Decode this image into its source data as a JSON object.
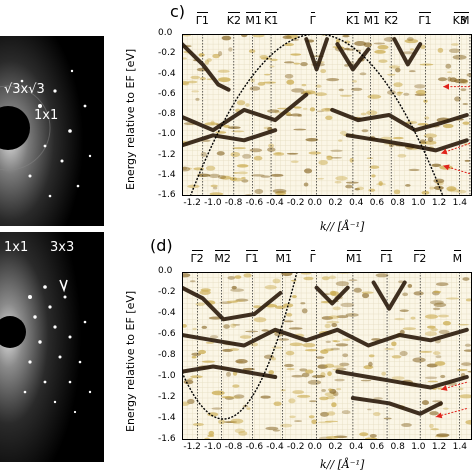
{
  "leed_top": {
    "labels": [
      "√3x√3",
      "1x1"
    ]
  },
  "leed_bottom": {
    "labels": [
      "1x1",
      "3x3"
    ]
  },
  "panel_c": {
    "letter": "c)",
    "ylabel": "Energy relative to EF [eV]",
    "xlabel": "k// [Å⁻¹]",
    "kpoints": [
      "Γ1",
      "K2",
      "M1",
      "K1",
      "Γ",
      "K1",
      "M1",
      "K2",
      "Γ1",
      "K3",
      "M"
    ]
  },
  "panel_d": {
    "letter": "(d)",
    "ylabel": "Energy relative to EF [eV]",
    "xlabel": "k// [Å⁻¹]",
    "kpoints": [
      "Γ2",
      "M2",
      "Γ1",
      "M1",
      "Γ",
      "M1",
      "Γ1",
      "Γ2",
      "M"
    ]
  },
  "colors": {
    "band_dark": "#2a1a0a",
    "band_light": "#c9a94a",
    "arrow": "#e0231b"
  },
  "chart_data": [
    {
      "type": "heatmap",
      "title": "",
      "xlabel": "k// [Å⁻¹]",
      "ylabel": "Energy relative to EF [eV]",
      "xlim": [
        -1.3,
        1.5
      ],
      "ylim": [
        -1.6,
        0.0
      ],
      "x_ticks": [
        "-1.2",
        "-1.0",
        "-0.8",
        "-0.6",
        "-0.4",
        "-0.2",
        "0.0",
        "0.2",
        "0.4",
        "0.6",
        "0.8",
        "1.0",
        "1.2",
        "1.4"
      ],
      "y_ticks": [
        "0.0",
        "-0.2",
        "-0.4",
        "-0.6",
        "-0.8",
        "-1.0",
        "-1.2",
        "-1.4",
        "-1.6"
      ],
      "kpoint_positions": [
        -1.1,
        -0.8,
        -0.62,
        -0.44,
        0.0,
        0.35,
        0.52,
        0.72,
        1.05,
        1.38,
        1.48
      ],
      "parabola": {
        "vertex_k": 0.0,
        "vertex_E": 0.0,
        "E_at_k1.2": -1.55
      },
      "grid": true
    },
    {
      "type": "heatmap",
      "title": "",
      "xlabel": "k// [Å⁻¹]",
      "ylabel": "Energy relative to EF [eV]",
      "xlim": [
        -1.3,
        1.5
      ],
      "ylim": [
        -1.6,
        0.0
      ],
      "x_ticks": [
        "-1.2",
        "-1.0",
        "-0.8",
        "-0.6",
        "-0.4",
        "-0.2",
        "0.0",
        "0.2",
        "0.4",
        "0.6",
        "0.8",
        "1.0",
        "1.2",
        "1.4"
      ],
      "y_ticks": [
        "0.0",
        "-0.2",
        "-0.4",
        "-0.6",
        "-0.8",
        "-1.0",
        "-1.2",
        "-1.4",
        "-1.6"
      ],
      "kpoint_positions": [
        -1.15,
        -0.92,
        -0.62,
        -0.33,
        0.0,
        0.35,
        0.68,
        1.0,
        1.38
      ],
      "parabola": {
        "vertex_k": -0.9,
        "vertex_E": -1.4,
        "E_at_k-1.2": -1.15
      },
      "grid": true
    }
  ]
}
